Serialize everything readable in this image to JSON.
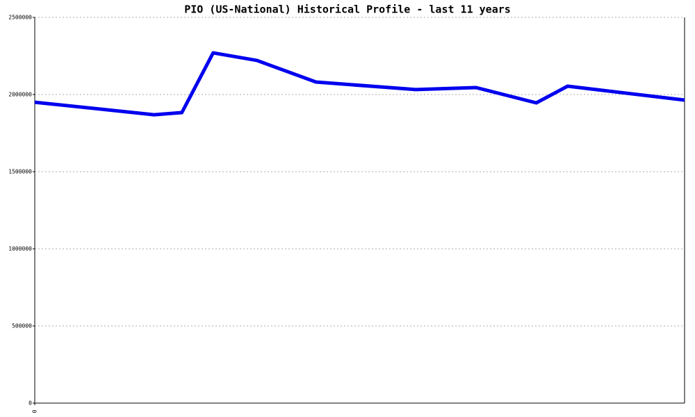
{
  "chart_data": {
    "type": "line",
    "title": "PIO (US-National) Historical Profile - last 11 years",
    "x": [
      0,
      2.02,
      2.49,
      3.02,
      3.76,
      4.76,
      6.45,
      7.47,
      8.49,
      9.02,
      11
    ],
    "series": [
      {
        "name": "PIO",
        "color": "#0000ee",
        "values": [
          1950000,
          1869000,
          1883000,
          2270000,
          2221000,
          2081000,
          2032000,
          2045000,
          1946000,
          2054000,
          1964000
        ]
      }
    ],
    "xlim": [
      0,
      11
    ],
    "xticks": [
      0
    ],
    "ylim": [
      0,
      2500000
    ],
    "yticks": [
      0,
      500000,
      1000000,
      1500000,
      2000000,
      2500000
    ],
    "grid": true
  }
}
